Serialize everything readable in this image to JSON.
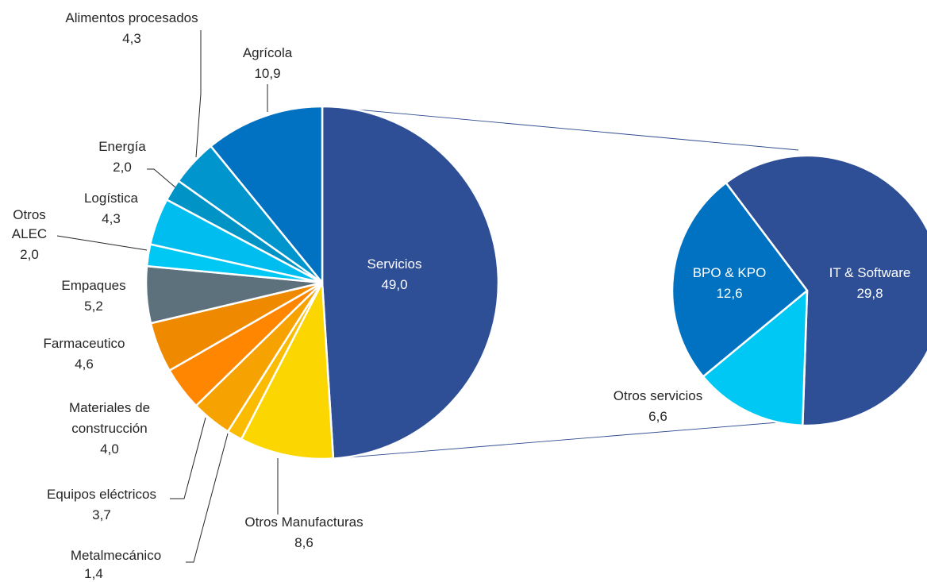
{
  "chart_data": {
    "type": "pie",
    "subtype": "pie-of-pie",
    "title": "",
    "main": {
      "slices": [
        {
          "label": "Servicios",
          "value": "49,0",
          "v": 49.0,
          "color": "#2e4e96"
        },
        {
          "label": "Otros Manufacturas",
          "value": "8,6",
          "v": 8.6,
          "color": "#fbd600"
        },
        {
          "label": "Metalmecánico",
          "value": "1,4",
          "v": 1.4,
          "color": "#fbbb00"
        },
        {
          "label": "Equipos eléctricos",
          "value": "3,7",
          "v": 3.7,
          "color": "#f6a200"
        },
        {
          "label": "Materiales de construcción",
          "value": "4,0",
          "v": 4.0,
          "color": "#fe8600"
        },
        {
          "label": "Farmaceutico",
          "value": "4,6",
          "v": 4.6,
          "color": "#ef8a00"
        },
        {
          "label": "Empaques",
          "value": "5,2",
          "v": 5.2,
          "color": "#5c717b"
        },
        {
          "label": "Otros ALEC",
          "value": "2,0",
          "v": 2.0,
          "color": "#00c8f4"
        },
        {
          "label": "Logística",
          "value": "4,3",
          "v": 4.3,
          "color": "#00bdf0"
        },
        {
          "label": "Energía",
          "value": "2,0",
          "v": 2.0,
          "color": "#0093c5"
        },
        {
          "label": "Alimentos procesados",
          "value": "4,3",
          "v": 4.3,
          "color": "#0096cd"
        },
        {
          "label": "Agrícola",
          "value": "10,9",
          "v": 10.9,
          "color": "#0072c1"
        }
      ]
    },
    "breakdown": {
      "of": "Servicios",
      "slices": [
        {
          "label": "IT & Software",
          "value": "29,8",
          "v": 29.8,
          "color": "#2e4e96"
        },
        {
          "label": "Otros servicios",
          "value": "6,6",
          "v": 6.6,
          "color": "#00c8f4"
        },
        {
          "label": "BPO & KPO",
          "value": "12,6",
          "v": 12.6,
          "color": "#0072c1"
        }
      ]
    }
  }
}
